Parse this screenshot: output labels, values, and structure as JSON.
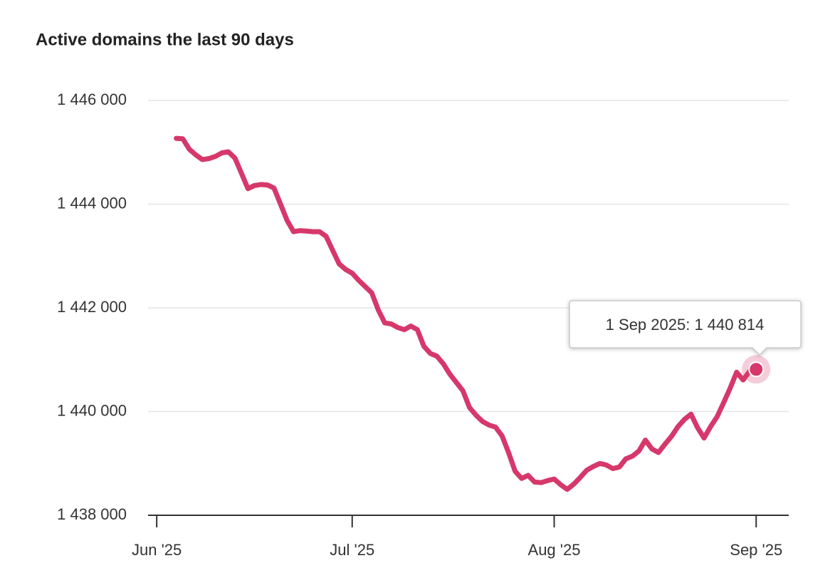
{
  "chart_data": {
    "type": "line",
    "title": "Active domains the last 90 days",
    "x": [
      "2025-06-04",
      "2025-06-05",
      "2025-06-06",
      "2025-06-07",
      "2025-06-08",
      "2025-06-09",
      "2025-06-10",
      "2025-06-11",
      "2025-06-12",
      "2025-06-13",
      "2025-06-14",
      "2025-06-15",
      "2025-06-16",
      "2025-06-17",
      "2025-06-18",
      "2025-06-19",
      "2025-06-20",
      "2025-06-21",
      "2025-06-22",
      "2025-06-23",
      "2025-06-24",
      "2025-06-25",
      "2025-06-26",
      "2025-06-27",
      "2025-06-28",
      "2025-06-29",
      "2025-06-30",
      "2025-07-01",
      "2025-07-02",
      "2025-07-03",
      "2025-07-04",
      "2025-07-05",
      "2025-07-06",
      "2025-07-07",
      "2025-07-08",
      "2025-07-09",
      "2025-07-10",
      "2025-07-11",
      "2025-07-12",
      "2025-07-13",
      "2025-07-14",
      "2025-07-15",
      "2025-07-16",
      "2025-07-17",
      "2025-07-18",
      "2025-07-19",
      "2025-07-20",
      "2025-07-21",
      "2025-07-22",
      "2025-07-23",
      "2025-07-24",
      "2025-07-25",
      "2025-07-26",
      "2025-07-27",
      "2025-07-28",
      "2025-07-29",
      "2025-07-30",
      "2025-07-31",
      "2025-08-01",
      "2025-08-02",
      "2025-08-03",
      "2025-08-04",
      "2025-08-05",
      "2025-08-06",
      "2025-08-07",
      "2025-08-08",
      "2025-08-09",
      "2025-08-10",
      "2025-08-11",
      "2025-08-12",
      "2025-08-13",
      "2025-08-14",
      "2025-08-15",
      "2025-08-16",
      "2025-08-17",
      "2025-08-18",
      "2025-08-19",
      "2025-08-20",
      "2025-08-21",
      "2025-08-22",
      "2025-08-23",
      "2025-08-24",
      "2025-08-25",
      "2025-08-26",
      "2025-08-27",
      "2025-08-28",
      "2025-08-29",
      "2025-08-30",
      "2025-08-31",
      "2025-09-01"
    ],
    "series": [
      {
        "name": "Active domains",
        "color": "#d6386b",
        "values": [
          1445270,
          1445260,
          1445060,
          1444950,
          1444860,
          1444880,
          1444920,
          1444990,
          1445010,
          1444890,
          1444600,
          1444300,
          1444360,
          1444380,
          1444370,
          1444310,
          1444000,
          1443690,
          1443470,
          1443490,
          1443480,
          1443470,
          1443470,
          1443380,
          1443110,
          1442850,
          1442740,
          1442670,
          1442530,
          1442410,
          1442290,
          1441960,
          1441710,
          1441690,
          1441620,
          1441580,
          1441650,
          1441580,
          1441260,
          1441120,
          1441070,
          1440920,
          1440720,
          1440560,
          1440400,
          1440080,
          1439930,
          1439810,
          1439740,
          1439700,
          1439530,
          1439210,
          1438850,
          1438710,
          1438770,
          1438640,
          1438630,
          1438670,
          1438700,
          1438590,
          1438500,
          1438600,
          1438730,
          1438870,
          1438940,
          1439000,
          1438970,
          1438900,
          1438930,
          1439090,
          1439140,
          1439240,
          1439450,
          1439280,
          1439210,
          1439370,
          1439520,
          1439710,
          1439850,
          1439950,
          1439690,
          1439490,
          1439710,
          1439900,
          1440170,
          1440450,
          1440760,
          1440610,
          1440780,
          1440814
        ]
      }
    ],
    "xlim": [
      "2025-05-31",
      "2025-09-06"
    ],
    "xticks": [
      {
        "value": "2025-06-01",
        "label": "Jun '25"
      },
      {
        "value": "2025-07-01",
        "label": "Jul '25"
      },
      {
        "value": "2025-08-01",
        "label": "Aug '25"
      },
      {
        "value": "2025-09-01",
        "label": "Sep '25"
      }
    ],
    "ylim": [
      1438000,
      1446000
    ],
    "yticks": [
      {
        "value": 1438000,
        "label": "1 438 000"
      },
      {
        "value": 1440000,
        "label": "1 440 000"
      },
      {
        "value": 1442000,
        "label": "1 442 000"
      },
      {
        "value": 1444000,
        "label": "1 444 000"
      },
      {
        "value": 1446000,
        "label": "1 446 000"
      }
    ],
    "grid": true,
    "tooltip": "1 Sep 2025: 1 440 814"
  }
}
